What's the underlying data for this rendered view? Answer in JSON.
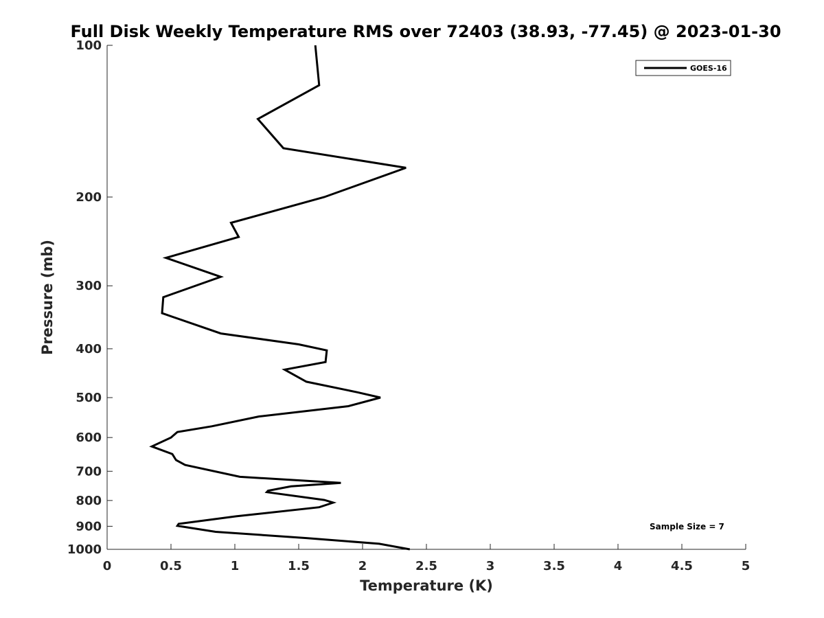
{
  "chart_data": {
    "type": "line",
    "title": "Full Disk Weekly Temperature RMS over 72403 (38.93, -77.45) @ 2023-01-30",
    "xlabel": "Temperature (K)",
    "ylabel": "Pressure (mb)",
    "xlim": [
      0,
      5
    ],
    "ylim": [
      1000,
      100
    ],
    "y_scale": "log",
    "y_reversed": true,
    "x_ticks": [
      0,
      0.5,
      1,
      1.5,
      2,
      2.5,
      3,
      3.5,
      4,
      4.5,
      5
    ],
    "x_tick_labels": [
      "0",
      "0.5",
      "1",
      "1.5",
      "2",
      "2.5",
      "3",
      "3.5",
      "4",
      "4.5",
      "5"
    ],
    "y_ticks": [
      100,
      200,
      300,
      400,
      500,
      600,
      700,
      800,
      900,
      1000
    ],
    "y_tick_labels": [
      "100",
      "200",
      "300",
      "400",
      "500",
      "600",
      "700",
      "800",
      "900",
      "1000"
    ],
    "grid": false,
    "legend_position": "top-right",
    "annotation": "Sample Size = 7",
    "series": [
      {
        "name": "GOES-16",
        "color": "#000000",
        "x": [
          1.63,
          1.66,
          1.18,
          1.38,
          2.34,
          1.7,
          0.97,
          1.03,
          0.46,
          0.89,
          0.44,
          0.43,
          0.89,
          1.5,
          1.72,
          1.71,
          1.39,
          1.56,
          1.96,
          2.14,
          1.89,
          1.19,
          0.82,
          0.55,
          0.5,
          0.35,
          0.51,
          0.54,
          0.61,
          1.04,
          1.83,
          1.44,
          1.26,
          1.25,
          1.7,
          1.77,
          1.66,
          1.01,
          0.56,
          0.55,
          0.85,
          1.56,
          2.13,
          2.37
        ],
        "y": [
          100,
          120,
          140,
          160,
          175,
          200,
          225,
          240,
          264,
          288,
          316,
          340,
          373,
          392,
          403,
          425,
          440,
          465,
          488,
          500,
          520,
          545,
          570,
          585,
          600,
          625,
          647,
          665,
          680,
          718,
          738,
          750,
          765,
          770,
          798,
          808,
          825,
          860,
          890,
          898,
          923,
          950,
          975,
          1000
        ]
      }
    ]
  }
}
